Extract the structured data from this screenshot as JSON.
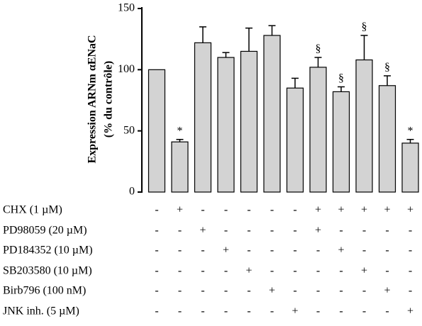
{
  "chart_data": {
    "type": "bar",
    "y_label": [
      "Expression ARNm αENaC",
      "(% du contrôle)"
    ],
    "values": [
      100,
      41,
      122,
      110,
      115,
      128,
      85,
      102,
      82,
      108,
      87,
      40
    ],
    "errors": [
      0,
      2,
      13,
      4,
      19,
      8,
      8,
      8,
      4,
      20,
      8,
      3
    ],
    "markers": [
      null,
      "*",
      null,
      null,
      null,
      null,
      null,
      "§",
      "§",
      "§",
      "§",
      "*"
    ],
    "color": "#d3d3d3",
    "ylim": [
      0,
      150
    ],
    "yticks": [
      0,
      50,
      100,
      150
    ],
    "conditions": [
      {
        "label": "CHX (1 µM)",
        "signs": [
          "-",
          "+",
          "-",
          "-",
          "-",
          "-",
          "-",
          "+",
          "+",
          "+",
          "+",
          "+"
        ]
      },
      {
        "label": "PD98059 (20 µM)",
        "signs": [
          "-",
          "-",
          "+",
          "-",
          "-",
          "-",
          "-",
          "+",
          "-",
          "-",
          "-",
          "-"
        ]
      },
      {
        "label": "PD184352 (10 µM)",
        "signs": [
          "-",
          "-",
          "-",
          "+",
          "-",
          "-",
          "-",
          "-",
          "+",
          "-",
          "-",
          "-"
        ]
      },
      {
        "label": "SB203580 (10 µM)",
        "signs": [
          "-",
          "-",
          "-",
          "-",
          "+",
          "-",
          "-",
          "-",
          "-",
          "+",
          "-",
          "-"
        ]
      },
      {
        "label": "Birb796 (100 nM)",
        "signs": [
          "-",
          "-",
          "-",
          "-",
          "-",
          "+",
          "-",
          "-",
          "-",
          "-",
          "+",
          "-"
        ]
      },
      {
        "label": "JNK inh. (5 µM)",
        "signs": [
          "-",
          "-",
          "-",
          "-",
          "-",
          "-",
          "+",
          "-",
          "-",
          "-",
          "-",
          "+"
        ]
      }
    ]
  }
}
